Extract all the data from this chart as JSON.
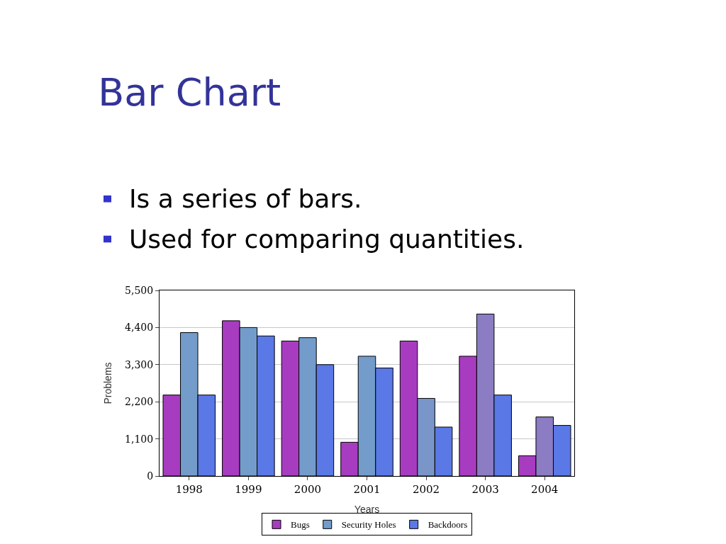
{
  "chart_data": {
    "type": "bar",
    "title": "Bar Chart",
    "annotations": [
      "Is a series of bars.",
      "Used for comparing quantities."
    ],
    "xlabel": "Years",
    "ylabel": "Problems",
    "categories": [
      "1998",
      "1999",
      "2000",
      "2001",
      "2002",
      "2003",
      "2004"
    ],
    "series": [
      {
        "name": "Bugs",
        "color": "#a83cc0",
        "values": [
          2400,
          4600,
          4000,
          1000,
          4000,
          3550,
          600
        ]
      },
      {
        "name": "Security Holes",
        "color": "#739ccb",
        "colors": [
          "#739ccb",
          "#739ccb",
          "#739ccb",
          "#739ccb",
          "#7a96c8",
          "#8b7cc4",
          "#8b7cc4"
        ],
        "values": [
          4250,
          4400,
          4100,
          3550,
          2300,
          4800,
          1750
        ]
      },
      {
        "name": "Backdoors",
        "color": "#5a78e6",
        "values": [
          2400,
          4150,
          3300,
          3200,
          1450,
          2400,
          1500
        ]
      }
    ],
    "ylim": [
      0,
      5500
    ],
    "yticks": [
      {
        "value": 0,
        "label": "0"
      },
      {
        "value": 1100,
        "label": "1,100"
      },
      {
        "value": 2200,
        "label": "2,200"
      },
      {
        "value": 3300,
        "label": "3,300"
      },
      {
        "value": 4400,
        "label": "4,400"
      },
      {
        "value": 5500,
        "label": "5,500"
      }
    ],
    "grid": "y",
    "legend": "bottom"
  }
}
